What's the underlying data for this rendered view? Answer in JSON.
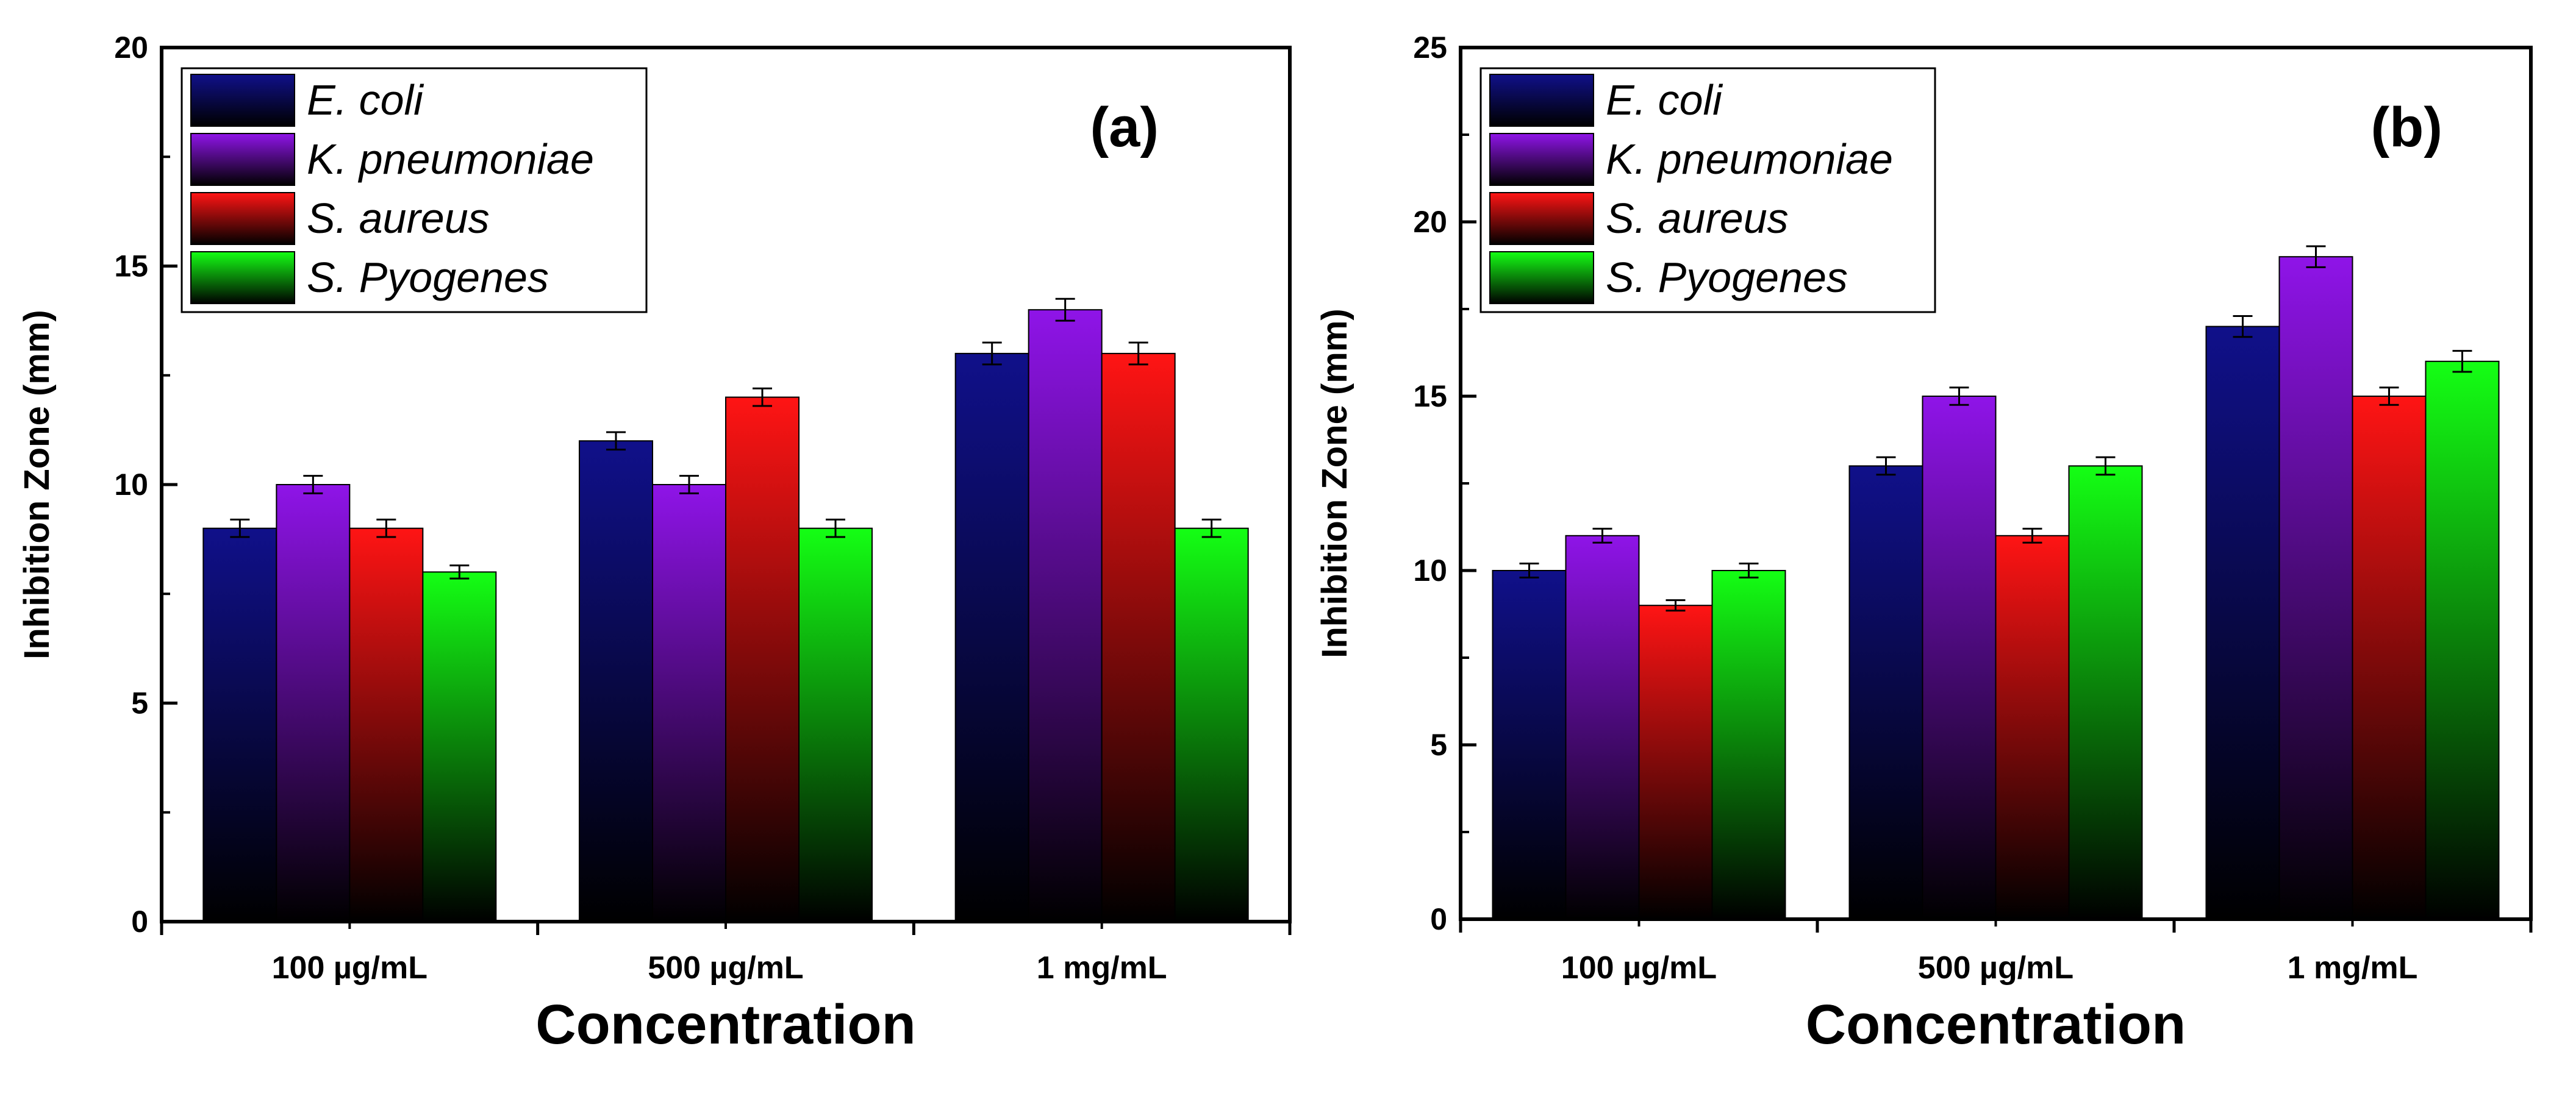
{
  "colors": {
    "E. coli": "#10108a",
    "K. pneumoniae": "#8f14e8",
    "S. aureus": "#ff1414",
    "S. Pyogenes": "#14ff14"
  },
  "chart_data": [
    {
      "type": "bar",
      "panel_label": "(a)",
      "categories": [
        "100 µg/mL",
        "500 µg/mL",
        "1 mg/mL"
      ],
      "series": [
        {
          "name": "E. coli",
          "values": [
            9,
            11,
            13
          ],
          "errors": [
            0.2,
            0.2,
            0.25
          ]
        },
        {
          "name": "K. pneumoniae",
          "values": [
            10,
            10,
            14
          ],
          "errors": [
            0.2,
            0.2,
            0.25
          ]
        },
        {
          "name": "S. aureus",
          "values": [
            9,
            12,
            13
          ],
          "errors": [
            0.2,
            0.2,
            0.25
          ]
        },
        {
          "name": "S. Pyogenes",
          "values": [
            8,
            9,
            9
          ],
          "errors": [
            0.15,
            0.2,
            0.2
          ]
        }
      ],
      "xlabel": "Concentration",
      "ylabel": "Inhibition Zone (mm)",
      "ylim": [
        0,
        20
      ],
      "yticks": [
        0,
        5,
        10,
        15,
        20
      ],
      "legend_position": "top-left"
    },
    {
      "type": "bar",
      "panel_label": "(b)",
      "categories": [
        "100 µg/mL",
        "500 µg/mL",
        "1 mg/mL"
      ],
      "series": [
        {
          "name": "E. coli",
          "values": [
            10,
            13,
            17
          ],
          "errors": [
            0.2,
            0.25,
            0.3
          ]
        },
        {
          "name": "K. pneumoniae",
          "values": [
            11,
            15,
            19
          ],
          "errors": [
            0.2,
            0.25,
            0.3
          ]
        },
        {
          "name": "S. aureus",
          "values": [
            9,
            11,
            15
          ],
          "errors": [
            0.15,
            0.2,
            0.25
          ]
        },
        {
          "name": "S. Pyogenes",
          "values": [
            10,
            13,
            16
          ],
          "errors": [
            0.2,
            0.25,
            0.3
          ]
        }
      ],
      "xlabel": "Concentration",
      "ylabel": "Inhibition Zone (mm)",
      "ylim": [
        0,
        25
      ],
      "yticks": [
        0,
        5,
        10,
        15,
        20,
        25
      ],
      "legend_position": "top-left"
    }
  ]
}
